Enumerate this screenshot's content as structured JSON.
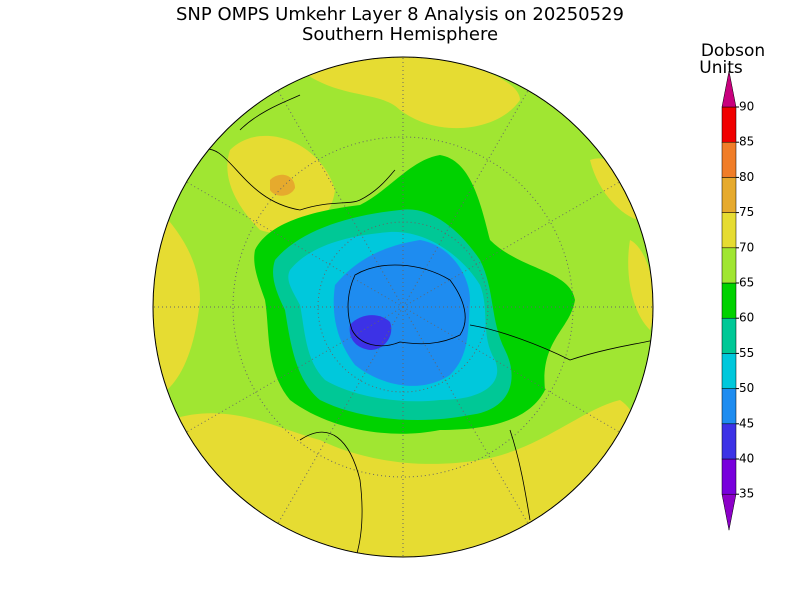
{
  "title": "SNP OMPS Umkehr Layer 8 Analysis on 20250529",
  "subtitle": "Southern Hemisphere",
  "colorbar": {
    "label_lines": [
      "Dobson",
      "Units"
    ],
    "ticks": [
      35,
      40,
      45,
      50,
      55,
      60,
      65,
      70,
      75,
      80,
      85,
      90
    ],
    "colors": [
      "#8c00c8",
      "#7800dc",
      "#3c32e6",
      "#1e8cf0",
      "#00c8dc",
      "#00c896",
      "#00d200",
      "#a0e632",
      "#e6dc32",
      "#e6aa2d",
      "#f07d28",
      "#f00000",
      "#c8007d"
    ]
  }
}
